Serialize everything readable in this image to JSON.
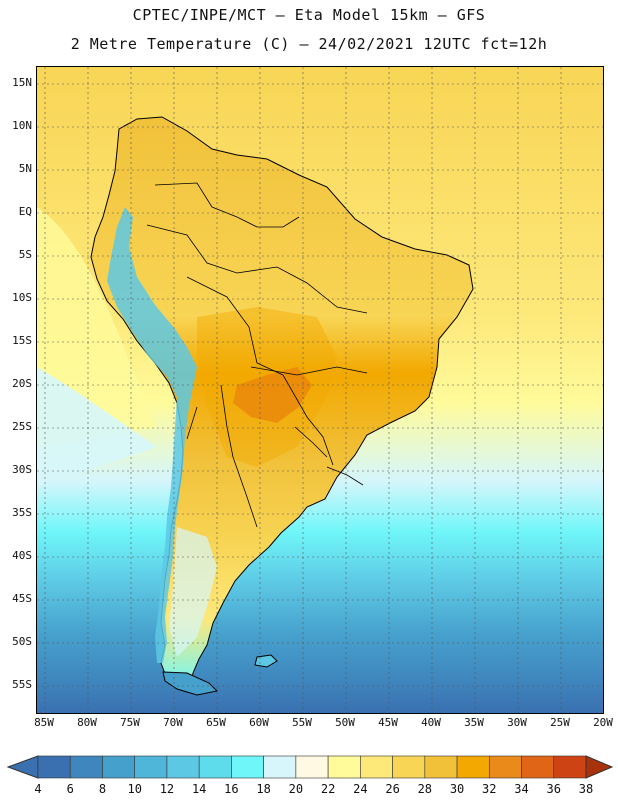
{
  "header": {
    "line1": "CPTEC/INPE/MCT –  Eta Model 15km – GFS",
    "line2": "2 Metre Temperature (C) – 24/02/2021 12UTC fct=12h"
  },
  "map": {
    "lon_range": [
      -86,
      -20
    ],
    "lat_range": [
      -58,
      17
    ],
    "lat_labels": [
      "15N",
      "10N",
      "5N",
      "EQ",
      "5S",
      "10S",
      "15S",
      "20S",
      "25S",
      "30S",
      "35S",
      "40S",
      "45S",
      "50S",
      "55S"
    ],
    "lon_labels": [
      "85W",
      "80W",
      "75W",
      "70W",
      "65W",
      "60W",
      "55W",
      "50W",
      "45W",
      "40W",
      "35W",
      "30W",
      "25W",
      "20W"
    ]
  },
  "colorbar": {
    "ticks": [
      "4",
      "6",
      "8",
      "10",
      "12",
      "14",
      "16",
      "18",
      "20",
      "22",
      "24",
      "26",
      "28",
      "30",
      "32",
      "34",
      "36",
      "38"
    ],
    "colors": [
      "#3a70b0",
      "#3f86be",
      "#46a0cc",
      "#4fb6d9",
      "#5dc8e4",
      "#5fdceb",
      "#6ff6f9",
      "#d6f6fb",
      "#fff8e2",
      "#fffb9b",
      "#fde87a",
      "#f8d555",
      "#f1c13a",
      "#f2a800",
      "#ea8a1a",
      "#e16516",
      "#cd4314",
      "#a8320c"
    ]
  }
}
